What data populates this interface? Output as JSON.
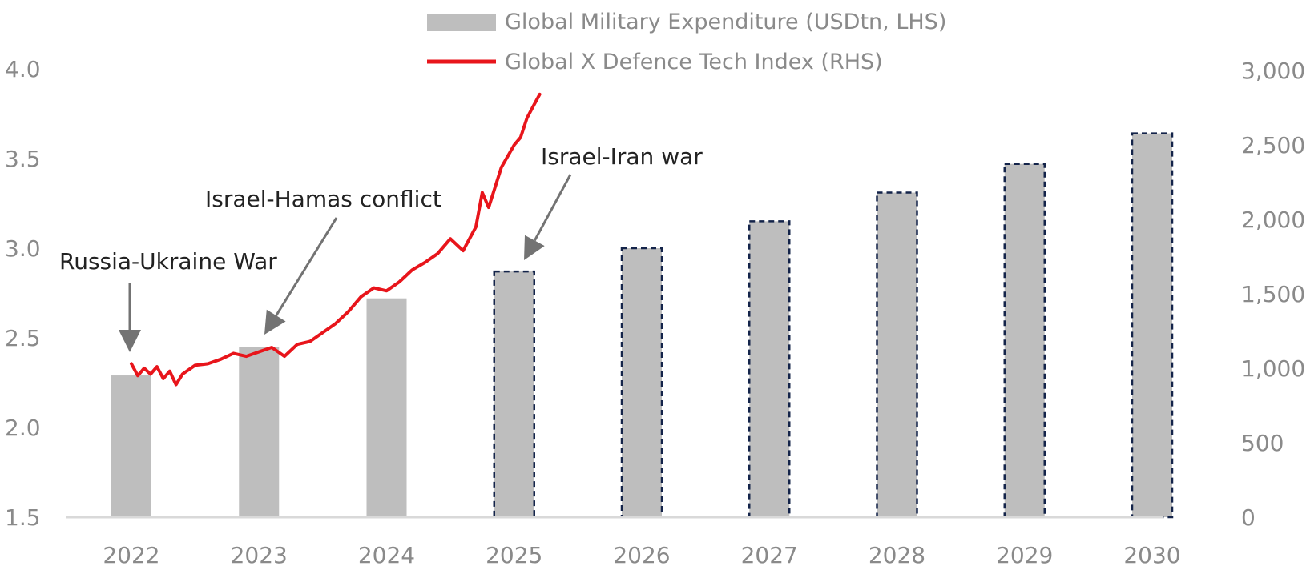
{
  "chart_data": {
    "type": "bar",
    "title": "",
    "categories": [
      "2022",
      "2023",
      "2024",
      "2025",
      "2026",
      "2027",
      "2028",
      "2029",
      "2030"
    ],
    "series": [
      {
        "name": "Global Military Expenditure (USDtn, LHS)",
        "type": "bar",
        "axis": "left",
        "color": "#bebebe",
        "values": [
          2.29,
          2.45,
          2.72,
          2.87,
          3.0,
          3.15,
          3.31,
          3.47,
          3.64
        ],
        "forecast_from": "2025"
      },
      {
        "name": "Global X Defence Tech Index (RHS)",
        "type": "line",
        "axis": "right",
        "color": "#e8151b",
        "x": [
          2022.0,
          2022.05,
          2022.1,
          2022.15,
          2022.2,
          2022.25,
          2022.3,
          2022.35,
          2022.4,
          2022.5,
          2022.6,
          2022.7,
          2022.8,
          2022.9,
          2023.0,
          2023.1,
          2023.2,
          2023.3,
          2023.4,
          2023.5,
          2023.6,
          2023.7,
          2023.8,
          2023.9,
          2024.0,
          2024.1,
          2024.2,
          2024.3,
          2024.4,
          2024.5,
          2024.6,
          2024.7,
          2024.75,
          2024.8,
          2024.9,
          2025.0,
          2025.05,
          2025.1,
          2025.15,
          2025.2
        ],
        "values": [
          1030,
          950,
          1000,
          960,
          1010,
          930,
          980,
          890,
          960,
          1020,
          1030,
          1060,
          1100,
          1080,
          1110,
          1140,
          1080,
          1160,
          1180,
          1240,
          1300,
          1380,
          1480,
          1540,
          1520,
          1580,
          1660,
          1710,
          1770,
          1870,
          1790,
          1950,
          2180,
          2080,
          2350,
          2500,
          2550,
          2680,
          2760,
          2840
        ],
        "end": "2025.2"
      }
    ],
    "y_left": {
      "ylim": [
        1.5,
        4.0
      ],
      "ticks": [
        "1.5",
        "2.0",
        "2.5",
        "3.0",
        "3.5",
        "4.0"
      ]
    },
    "y_right": {
      "ylim": [
        0,
        3000
      ],
      "ticks": [
        "0",
        "500",
        "1,000",
        "1,500",
        "2,000",
        "2,500",
        "3,000"
      ]
    },
    "legend": {
      "placement": "top-center"
    },
    "grid": false,
    "annotations": [
      {
        "text": "Russia-Ukraine War",
        "target": "2022"
      },
      {
        "text": "Israel-Hamas conflict",
        "target": "2023"
      },
      {
        "text": "Israel-Iran war",
        "target": "2025"
      }
    ]
  }
}
